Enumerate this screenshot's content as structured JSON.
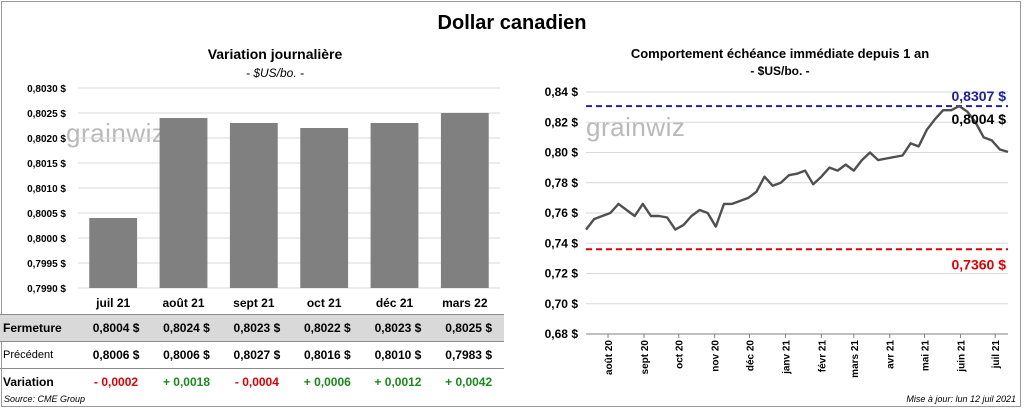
{
  "title": "Dollar canadien",
  "source": "Source: CME Group",
  "updated": "Mise à jour: lun 12 juil 2021",
  "watermark": "grainwiz",
  "chart_data": [
    {
      "type": "bar",
      "title": "Variation  journalière",
      "subtitle": "- $US/bo. -",
      "categories": [
        "juil 21",
        "août 21",
        "sept 21",
        "oct 21",
        "déc 21",
        "mars 22"
      ],
      "values": [
        0.8004,
        0.8024,
        0.8023,
        0.8022,
        0.8023,
        0.8025
      ],
      "ylim": [
        0.799,
        0.803
      ],
      "yticks": [
        "0,7990 $",
        "0,7995 $",
        "0,8000 $",
        "0,8005 $",
        "0,8010 $",
        "0,8015 $",
        "0,8020 $",
        "0,8025 $",
        "0,8030 $"
      ],
      "bar_color": "#808080",
      "table": {
        "rows": [
          {
            "label": "Fermeture",
            "values": [
              "0,8004  $",
              "0,8024  $",
              "0,8023  $",
              "0,8022  $",
              "0,8023  $",
              "0,8025  $"
            ]
          },
          {
            "label": "Précédent",
            "values": [
              "0,8006  $",
              "0,8006  $",
              "0,8027  $",
              "0,8016  $",
              "0,8010  $",
              "0,7983  $"
            ]
          },
          {
            "label": "Variation",
            "values": [
              "- 0,0002",
              "+ 0,0018",
              "- 0,0004",
              "+ 0,0006",
              "+ 0,0012",
              "+ 0,0042"
            ]
          }
        ]
      }
    },
    {
      "type": "line",
      "title": "Comportement échéance immédiate depuis 1 an",
      "subtitle": "- $US/bo. -",
      "x_range": [
        "2020-07-13",
        "2021-07-12"
      ],
      "ylim": [
        0.68,
        0.84
      ],
      "yticks": [
        "0,68 $",
        "0,70 $",
        "0,72 $",
        "0,74 $",
        "0,76 $",
        "0,78 $",
        "0,80 $",
        "0,82 $",
        "0,84 $"
      ],
      "xticks": [
        {
          "date": "2020-08-01",
          "label": "août 20"
        },
        {
          "date": "2020-09-01",
          "label": "sept 20"
        },
        {
          "date": "2020-10-01",
          "label": "oct 20"
        },
        {
          "date": "2020-11-01",
          "label": "nov 20"
        },
        {
          "date": "2020-12-01",
          "label": "déc 20"
        },
        {
          "date": "2021-01-01",
          "label": "janv 21"
        },
        {
          "date": "2021-02-01",
          "label": "févr 21"
        },
        {
          "date": "2021-03-01",
          "label": "mars 21"
        },
        {
          "date": "2021-04-01",
          "label": "avr 21"
        },
        {
          "date": "2021-05-01",
          "label": "mai 21"
        },
        {
          "date": "2021-06-01",
          "label": "juin 21"
        },
        {
          "date": "2021-07-01",
          "label": "juil 21"
        }
      ],
      "series": [
        {
          "color": "#505050",
          "points": [
            [
              "2020-07-13",
              0.749
            ],
            [
              "2020-07-20",
              0.756
            ],
            [
              "2020-07-27",
              0.758
            ],
            [
              "2020-08-03",
              0.76
            ],
            [
              "2020-08-10",
              0.766
            ],
            [
              "2020-08-17",
              0.762
            ],
            [
              "2020-08-24",
              0.758
            ],
            [
              "2020-08-31",
              0.766
            ],
            [
              "2020-09-07",
              0.758
            ],
            [
              "2020-09-14",
              0.758
            ],
            [
              "2020-09-21",
              0.757
            ],
            [
              "2020-09-28",
              0.749
            ],
            [
              "2020-10-05",
              0.752
            ],
            [
              "2020-10-12",
              0.758
            ],
            [
              "2020-10-19",
              0.762
            ],
            [
              "2020-10-26",
              0.76
            ],
            [
              "2020-11-02",
              0.751
            ],
            [
              "2020-11-09",
              0.766
            ],
            [
              "2020-11-16",
              0.766
            ],
            [
              "2020-11-23",
              0.768
            ],
            [
              "2020-11-30",
              0.77
            ],
            [
              "2020-12-07",
              0.774
            ],
            [
              "2020-12-14",
              0.784
            ],
            [
              "2020-12-21",
              0.778
            ],
            [
              "2020-12-28",
              0.78
            ],
            [
              "2021-01-04",
              0.785
            ],
            [
              "2021-01-11",
              0.786
            ],
            [
              "2021-01-18",
              0.788
            ],
            [
              "2021-01-25",
              0.779
            ],
            [
              "2021-02-01",
              0.784
            ],
            [
              "2021-02-08",
              0.79
            ],
            [
              "2021-02-15",
              0.788
            ],
            [
              "2021-02-22",
              0.792
            ],
            [
              "2021-03-01",
              0.788
            ],
            [
              "2021-03-08",
              0.795
            ],
            [
              "2021-03-15",
              0.8
            ],
            [
              "2021-03-22",
              0.795
            ],
            [
              "2021-03-29",
              0.796
            ],
            [
              "2021-04-05",
              0.797
            ],
            [
              "2021-04-12",
              0.798
            ],
            [
              "2021-04-19",
              0.806
            ],
            [
              "2021-04-26",
              0.804
            ],
            [
              "2021-05-03",
              0.815
            ],
            [
              "2021-05-10",
              0.822
            ],
            [
              "2021-05-17",
              0.828
            ],
            [
              "2021-05-24",
              0.828
            ],
            [
              "2021-05-31",
              0.8307
            ],
            [
              "2021-06-07",
              0.827
            ],
            [
              "2021-06-14",
              0.82
            ],
            [
              "2021-06-21",
              0.81
            ],
            [
              "2021-06-28",
              0.808
            ],
            [
              "2021-07-05",
              0.802
            ],
            [
              "2021-07-12",
              0.8004
            ]
          ]
        }
      ],
      "reference_lines": [
        {
          "value": 0.8307,
          "label": "0,8307 $",
          "color": "#2020a0"
        },
        {
          "value": 0.736,
          "label": "0,7360 $",
          "color": "#e00000"
        }
      ],
      "last_value_label": "0,8004 $"
    }
  ]
}
